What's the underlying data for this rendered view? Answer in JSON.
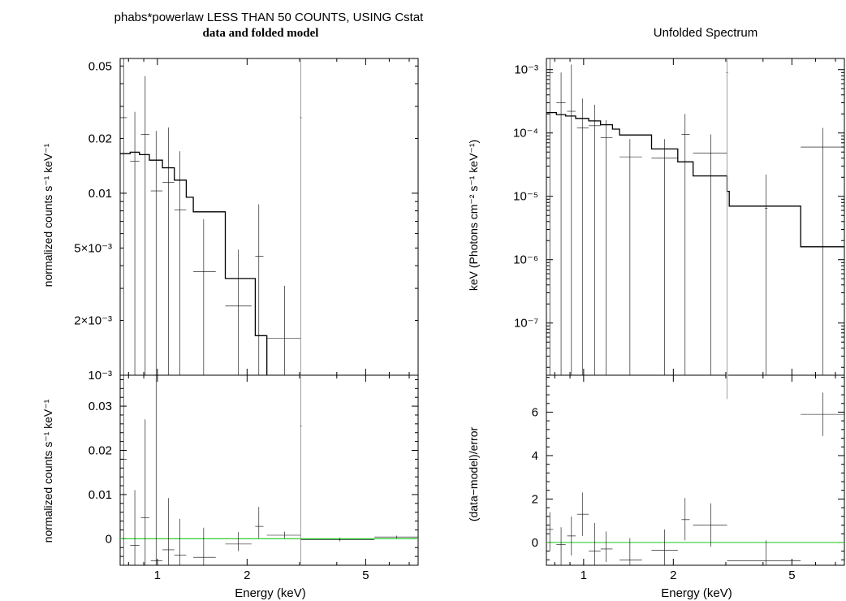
{
  "figure": {
    "left_title": "phabs*powerlaw LESS THAN 50 COUNTS, USING Cstat",
    "left_subtitle": "data and folded model",
    "right_title": "Unfolded Spectrum"
  },
  "chart_data": [
    {
      "id": "left-top",
      "type": "scatter",
      "title": "phabs*powerlaw LESS THAN 50 COUNTS, USING Cstat",
      "subtitle": "data and folded model",
      "ylabel": "normalized counts s⁻¹ keV⁻¹",
      "xscale": "log",
      "yscale": "log",
      "xlim": [
        0.75,
        7.5
      ],
      "ylim": [
        0.001,
        0.055
      ],
      "yticks": [
        {
          "v": 0.001,
          "label": "10⁻³"
        },
        {
          "v": 0.002,
          "label": "2×10⁻³"
        },
        {
          "v": 0.005,
          "label": "5×10⁻³"
        },
        {
          "v": 0.01,
          "label": "0.01"
        },
        {
          "v": 0.02,
          "label": "0.02"
        },
        {
          "v": 0.05,
          "label": "0.05"
        }
      ],
      "data": [
        {
          "x": 0.77,
          "xlo": 0.75,
          "xhi": 0.79,
          "y": 0.026,
          "ylo": 0.0001,
          "yhi": 0.055
        },
        {
          "x": 0.84,
          "xlo": 0.81,
          "xhi": 0.87,
          "y": 0.015,
          "ylo": 0.0001,
          "yhi": 0.028
        },
        {
          "x": 0.91,
          "xlo": 0.88,
          "xhi": 0.94,
          "y": 0.021,
          "ylo": 0.0001,
          "yhi": 0.044
        },
        {
          "x": 0.99,
          "xlo": 0.95,
          "xhi": 1.04,
          "y": 0.0103,
          "ylo": 0.0001,
          "yhi": 0.022
        },
        {
          "x": 1.09,
          "xlo": 1.04,
          "xhi": 1.14,
          "y": 0.0115,
          "ylo": 0.0001,
          "yhi": 0.023
        },
        {
          "x": 1.19,
          "xlo": 1.14,
          "xhi": 1.25,
          "y": 0.0081,
          "ylo": 0.0001,
          "yhi": 0.017
        },
        {
          "x": 1.43,
          "xlo": 1.32,
          "xhi": 1.57,
          "y": 0.0037,
          "ylo": 0.0001,
          "yhi": 0.0072
        },
        {
          "x": 1.87,
          "xlo": 1.69,
          "xhi": 2.07,
          "y": 0.0024,
          "ylo": 0.0001,
          "yhi": 0.0049
        },
        {
          "x": 2.19,
          "xlo": 2.13,
          "xhi": 2.27,
          "y": 0.0045,
          "ylo": 0.0001,
          "yhi": 0.0087
        },
        {
          "x": 2.67,
          "xlo": 2.33,
          "xhi": 3.03,
          "y": 0.0016,
          "ylo": 0.0001,
          "yhi": 0.0031
        },
        {
          "x": 3.03,
          "xlo": 3.03,
          "xhi": 3.03,
          "y": 0.026,
          "ylo": 0.0001,
          "yhi": 0.055,
          "grey": true
        }
      ],
      "model": [
        {
          "x0": 0.75,
          "x1": 0.81,
          "y": 0.0165
        },
        {
          "x0": 0.81,
          "x1": 0.87,
          "y": 0.0168
        },
        {
          "x0": 0.87,
          "x1": 0.94,
          "y": 0.0163
        },
        {
          "x0": 0.94,
          "x1": 1.04,
          "y": 0.0152
        },
        {
          "x0": 1.04,
          "x1": 1.14,
          "y": 0.0138
        },
        {
          "x0": 1.14,
          "x1": 1.25,
          "y": 0.0118
        },
        {
          "x0": 1.25,
          "x1": 1.32,
          "y": 0.0095
        },
        {
          "x0": 1.32,
          "x1": 1.69,
          "y": 0.0079
        },
        {
          "x0": 1.69,
          "x1": 2.13,
          "y": 0.0034
        },
        {
          "x0": 2.13,
          "x1": 2.33,
          "y": 0.00165
        },
        {
          "x0": 2.33,
          "x1": 2.33,
          "y": 0.0009
        }
      ]
    },
    {
      "id": "left-bottom",
      "type": "scatter",
      "xlabel": "Energy (keV)",
      "ylabel": "normalized counts s⁻¹ keV⁻¹",
      "xscale": "log",
      "yscale": "linear",
      "xlim": [
        0.75,
        7.5
      ],
      "ylim": [
        -0.006,
        0.037
      ],
      "xticks": [
        {
          "v": 1,
          "label": "1"
        },
        {
          "v": 2,
          "label": "2"
        },
        {
          "v": 5,
          "label": "5"
        }
      ],
      "yticks": [
        {
          "v": 0,
          "label": "0"
        },
        {
          "v": 0.01,
          "label": "0.01"
        },
        {
          "v": 0.02,
          "label": "0.02"
        },
        {
          "v": 0.03,
          "label": "0.03"
        }
      ],
      "zero_line": 0,
      "data": [
        {
          "x": 0.77,
          "xlo": 0.75,
          "xhi": 0.79,
          "y": 0.018,
          "ylo": -0.006,
          "yhi": 0.037
        },
        {
          "x": 0.84,
          "xlo": 0.81,
          "xhi": 0.87,
          "y": -0.0015,
          "ylo": -0.006,
          "yhi": 0.011
        },
        {
          "x": 0.91,
          "xlo": 0.88,
          "xhi": 0.94,
          "y": 0.0048,
          "ylo": -0.006,
          "yhi": 0.027
        },
        {
          "x": 0.99,
          "xlo": 0.95,
          "xhi": 1.04,
          "y": -0.005,
          "ylo": -0.006,
          "yhi": 0.037
        },
        {
          "x": 1.09,
          "xlo": 1.04,
          "xhi": 1.14,
          "y": -0.0025,
          "ylo": -0.006,
          "yhi": 0.0092
        },
        {
          "x": 1.19,
          "xlo": 1.14,
          "xhi": 1.25,
          "y": -0.0037,
          "ylo": -0.006,
          "yhi": 0.0045
        },
        {
          "x": 1.43,
          "xlo": 1.32,
          "xhi": 1.57,
          "y": -0.0042,
          "ylo": -0.006,
          "yhi": 0.0025
        },
        {
          "x": 1.87,
          "xlo": 1.69,
          "xhi": 2.07,
          "y": -0.0012,
          "ylo": -0.0028,
          "yhi": 0.0015
        },
        {
          "x": 2.19,
          "xlo": 2.13,
          "xhi": 2.27,
          "y": 0.0028,
          "ylo": 0.0001,
          "yhi": 0.0072
        },
        {
          "x": 2.67,
          "xlo": 2.33,
          "xhi": 3.03,
          "y": 0.0008,
          "ylo": 0.0001,
          "yhi": 0.0016
        },
        {
          "x": 3.03,
          "xlo": 3.03,
          "xhi": 3.03,
          "y": 0.0255,
          "ylo": -0.006,
          "yhi": 0.037,
          "grey": true
        },
        {
          "x": 4.1,
          "xlo": 3.03,
          "xhi": 5.35,
          "y": -0.0002,
          "ylo": -0.0006,
          "yhi": 0.0002
        },
        {
          "x": 6.35,
          "xlo": 5.35,
          "xhi": 7.5,
          "y": 0.0004,
          "ylo": 0.0001,
          "yhi": 0.0007
        }
      ]
    },
    {
      "id": "right-top",
      "type": "scatter",
      "title": "Unfolded Spectrum",
      "ylabel": "keV (Photons cm⁻² s⁻¹ keV⁻¹)",
      "xscale": "log",
      "yscale": "log",
      "xlim": [
        0.75,
        7.5
      ],
      "ylim": [
        1.5e-08,
        0.0015
      ],
      "yticks": [
        {
          "v": 1e-07,
          "label": "10⁻⁷"
        },
        {
          "v": 1e-06,
          "label": "10⁻⁶"
        },
        {
          "v": 1e-05,
          "label": "10⁻⁵"
        },
        {
          "v": 0.0001,
          "label": "10⁻⁴"
        },
        {
          "v": 0.001,
          "label": "10⁻³"
        }
      ],
      "data": [
        {
          "x": 0.77,
          "xlo": 0.75,
          "xhi": 0.79,
          "y": 0.0009,
          "ylo": 1e-10,
          "yhi": 0.0015
        },
        {
          "x": 0.84,
          "xlo": 0.81,
          "xhi": 0.87,
          "y": 0.0003,
          "ylo": 1e-10,
          "yhi": 0.0009
        },
        {
          "x": 0.91,
          "xlo": 0.88,
          "xhi": 0.94,
          "y": 0.00022,
          "ylo": 1e-10,
          "yhi": 0.0012
        },
        {
          "x": 0.99,
          "xlo": 0.95,
          "xhi": 1.04,
          "y": 0.00012,
          "ylo": 1e-10,
          "yhi": 0.00035
        },
        {
          "x": 1.09,
          "xlo": 1.04,
          "xhi": 1.14,
          "y": 0.00013,
          "ylo": 1e-10,
          "yhi": 0.00028
        },
        {
          "x": 1.19,
          "xlo": 1.14,
          "xhi": 1.25,
          "y": 8.5e-05,
          "ylo": 1e-10,
          "yhi": 0.00016
        },
        {
          "x": 1.43,
          "xlo": 1.32,
          "xhi": 1.57,
          "y": 4.2e-05,
          "ylo": 1e-10,
          "yhi": 8e-05
        },
        {
          "x": 1.87,
          "xlo": 1.69,
          "xhi": 2.07,
          "y": 4e-05,
          "ylo": 1e-10,
          "yhi": 8e-05
        },
        {
          "x": 2.19,
          "xlo": 2.13,
          "xhi": 2.27,
          "y": 9.5e-05,
          "ylo": 1e-10,
          "yhi": 0.0002
        },
        {
          "x": 2.67,
          "xlo": 2.33,
          "xhi": 3.03,
          "y": 4.8e-05,
          "ylo": 1e-10,
          "yhi": 9.5e-05
        },
        {
          "x": 3.03,
          "xlo": 3.03,
          "xhi": 3.03,
          "y": 0.0009,
          "ylo": 1e-10,
          "yhi": 0.0015,
          "grey": true
        },
        {
          "x": 4.1,
          "xlo": 4.1,
          "xhi": 4.1,
          "y": 6.5e-06,
          "ylo": 1e-10,
          "yhi": 2.2e-05
        },
        {
          "x": 6.35,
          "xlo": 5.35,
          "xhi": 7.5,
          "y": 6e-05,
          "ylo": 1e-10,
          "yhi": 0.00012
        }
      ],
      "model": [
        {
          "x0": 0.75,
          "x1": 0.81,
          "y": 0.00021
        },
        {
          "x0": 0.81,
          "x1": 0.87,
          "y": 0.000195
        },
        {
          "x0": 0.87,
          "x1": 0.94,
          "y": 0.000185
        },
        {
          "x0": 0.94,
          "x1": 1.04,
          "y": 0.00017
        },
        {
          "x0": 1.04,
          "x1": 1.14,
          "y": 0.000155
        },
        {
          "x0": 1.14,
          "x1": 1.25,
          "y": 0.000135
        },
        {
          "x0": 1.25,
          "x1": 1.32,
          "y": 0.000115
        },
        {
          "x0": 1.32,
          "x1": 1.69,
          "y": 9.3e-05
        },
        {
          "x0": 1.69,
          "x1": 2.07,
          "y": 5.6e-05
        },
        {
          "x0": 2.07,
          "x1": 2.33,
          "y": 3.5e-05
        },
        {
          "x0": 2.33,
          "x1": 3.03,
          "y": 2.1e-05
        },
        {
          "x0": 3.03,
          "x1": 3.08,
          "y": 1.2e-05
        },
        {
          "x0": 3.08,
          "x1": 5.35,
          "y": 7e-06
        },
        {
          "x0": 5.35,
          "x1": 7.5,
          "y": 1.6e-06
        }
      ]
    },
    {
      "id": "right-bottom",
      "type": "scatter",
      "xlabel": "Energy (keV)",
      "ylabel": "(data−model)/error",
      "xscale": "log",
      "yscale": "linear",
      "xlim": [
        0.75,
        7.5
      ],
      "ylim": [
        -1.05,
        7.7
      ],
      "xticks": [
        {
          "v": 1,
          "label": "1"
        },
        {
          "v": 2,
          "label": "2"
        },
        {
          "v": 5,
          "label": "5"
        }
      ],
      "yticks": [
        {
          "v": 0,
          "label": "0"
        },
        {
          "v": 2,
          "label": "2"
        },
        {
          "v": 4,
          "label": "4"
        },
        {
          "v": 6,
          "label": "6"
        }
      ],
      "zero_line": 0,
      "data": [
        {
          "x": 0.77,
          "xlo": 0.75,
          "xhi": 0.79,
          "y": 0.6,
          "ylo": -0.4,
          "yhi": 1.4
        },
        {
          "x": 0.84,
          "xlo": 0.81,
          "xhi": 0.87,
          "y": -0.1,
          "ylo": -1.05,
          "yhi": 0.7
        },
        {
          "x": 0.91,
          "xlo": 0.88,
          "xhi": 0.94,
          "y": 0.3,
          "ylo": -0.6,
          "yhi": 1.2
        },
        {
          "x": 0.99,
          "xlo": 0.95,
          "xhi": 1.04,
          "y": 1.3,
          "ylo": 0.3,
          "yhi": 2.3
        },
        {
          "x": 1.09,
          "xlo": 1.04,
          "xhi": 1.14,
          "y": -0.4,
          "ylo": -1.05,
          "yhi": 0.9
        },
        {
          "x": 1.19,
          "xlo": 1.14,
          "xhi": 1.25,
          "y": -0.3,
          "ylo": -0.9,
          "yhi": 0.5
        },
        {
          "x": 1.43,
          "xlo": 1.32,
          "xhi": 1.57,
          "y": -0.8,
          "ylo": -1.05,
          "yhi": 0.2
        },
        {
          "x": 1.87,
          "xlo": 1.69,
          "xhi": 2.07,
          "y": -0.35,
          "ylo": -1.05,
          "yhi": 0.6
        },
        {
          "x": 2.19,
          "xlo": 2.13,
          "xhi": 2.27,
          "y": 1.05,
          "ylo": 0.1,
          "yhi": 2.05
        },
        {
          "x": 2.67,
          "xlo": 2.33,
          "xhi": 3.03,
          "y": 0.8,
          "ylo": -0.2,
          "yhi": 1.8
        },
        {
          "x": 3.03,
          "xlo": 3.03,
          "xhi": 3.03,
          "y": 7.7,
          "ylo": 6.6,
          "yhi": 7.7,
          "grey": true
        },
        {
          "x": 4.1,
          "xlo": 3.03,
          "xhi": 5.35,
          "y": -0.85,
          "ylo": -1.05,
          "yhi": 0.1
        },
        {
          "x": 6.35,
          "xlo": 5.35,
          "xhi": 7.5,
          "y": 5.9,
          "ylo": 4.9,
          "yhi": 6.9
        }
      ]
    }
  ]
}
